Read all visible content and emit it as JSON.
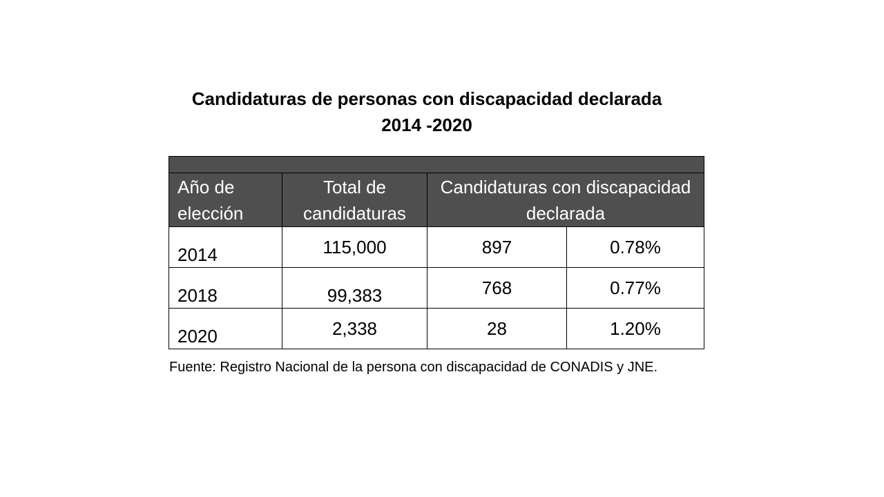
{
  "title": {
    "line1": "Candidaturas de personas con discapacidad declarada",
    "line2": "2014 -2020"
  },
  "table": {
    "headers": {
      "year": "Año de elección",
      "total": "Total de candidaturas",
      "disability": "Candidaturas con discapacidad declarada"
    },
    "rows": [
      {
        "year": "2014",
        "total": "115,000",
        "count": "897",
        "percent": "0.78%"
      },
      {
        "year": "2018",
        "total": "99,383",
        "count": "768",
        "percent": "0.77%"
      },
      {
        "year": "2020",
        "total": "2,338",
        "count": "28",
        "percent": "1.20%"
      }
    ]
  },
  "source": "Fuente: Registro Nacional de la persona con discapacidad de CONADIS y JNE.",
  "colors": {
    "header_bg": "#4f4f4f",
    "header_text": "#ffffff"
  }
}
